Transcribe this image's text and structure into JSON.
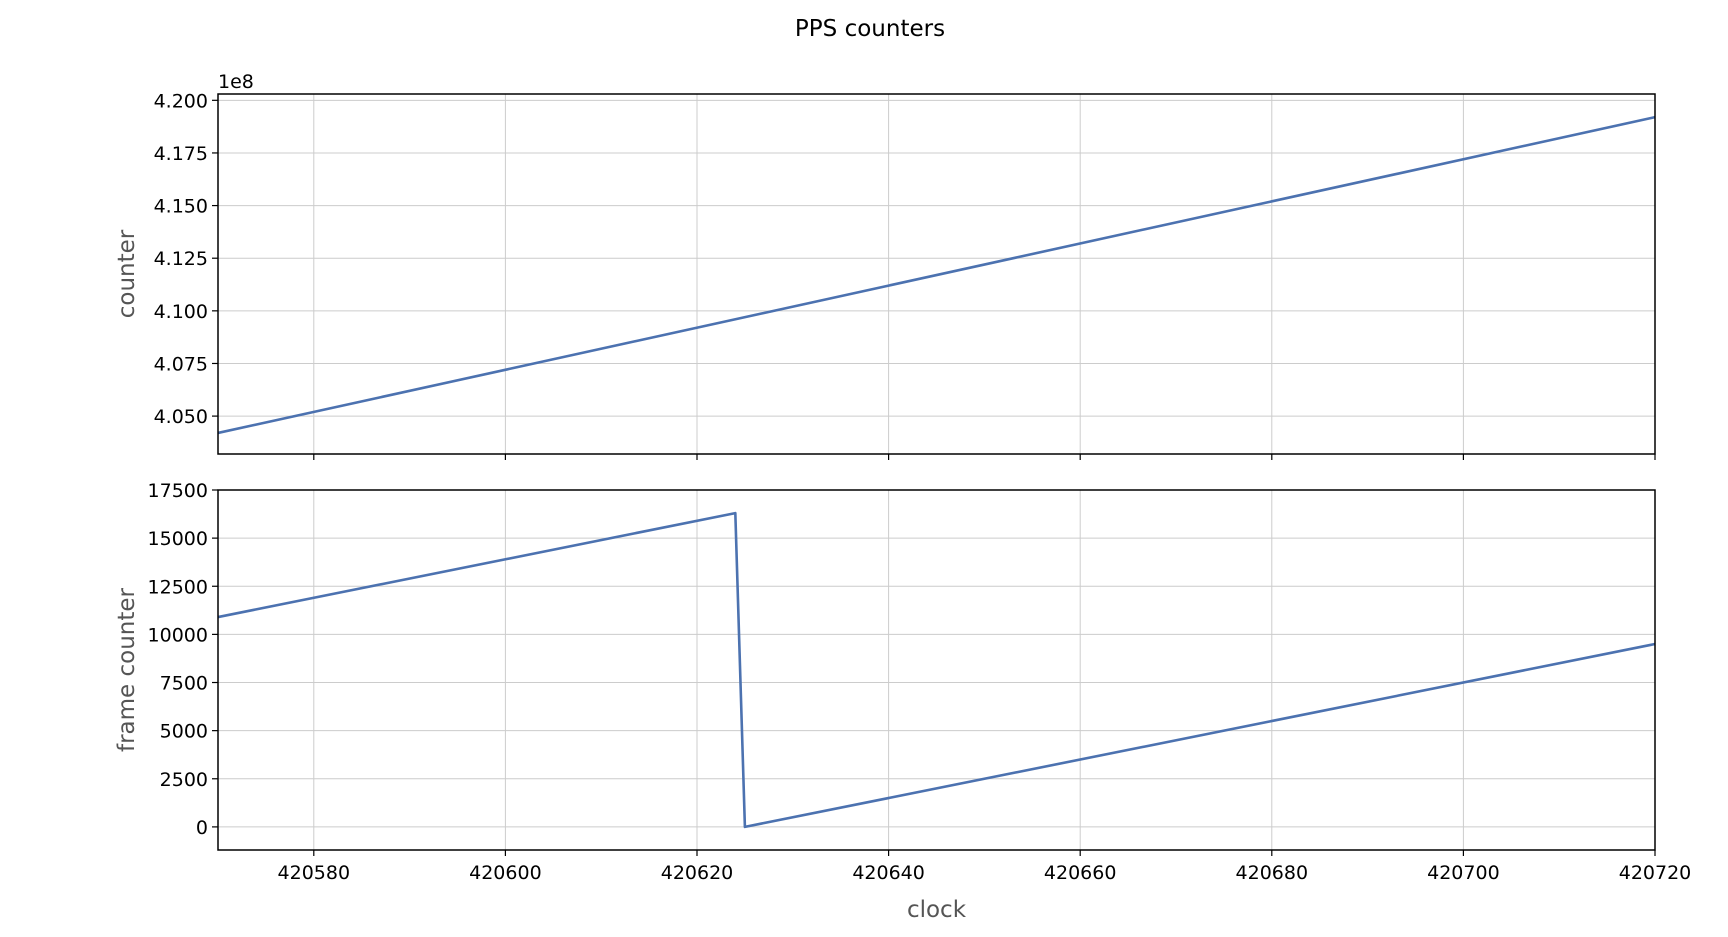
{
  "title": "PPS counters",
  "colors": {
    "series": "#4c72b0",
    "grid": "#cccccc"
  },
  "chart_data": [
    {
      "type": "line",
      "title": "",
      "xlabel": "",
      "ylabel": "counter",
      "y_offset_label": "1e8",
      "x_shared": true,
      "xlim": [
        420570,
        420720
      ],
      "ylim": [
        4.032,
        4.203
      ],
      "xticks": [
        420580,
        420600,
        420620,
        420640,
        420660,
        420680,
        420700,
        420720
      ],
      "xtick_labels_visible": false,
      "yticks": [
        4.05,
        4.075,
        4.1,
        4.125,
        4.15,
        4.175,
        4.2
      ],
      "ytick_labels": [
        "4.050",
        "4.075",
        "4.100",
        "4.125",
        "4.150",
        "4.175",
        "4.200"
      ],
      "grid": true,
      "series": [
        {
          "x": [
            420570,
            420720
          ],
          "y": [
            4.042,
            4.192
          ]
        }
      ]
    },
    {
      "type": "line",
      "title": "",
      "xlabel": "clock",
      "ylabel": "frame counter",
      "xlim": [
        420570,
        420720
      ],
      "ylim": [
        -1200,
        17500
      ],
      "xticks": [
        420580,
        420600,
        420620,
        420640,
        420660,
        420680,
        420700,
        420720
      ],
      "xtick_labels": [
        "420580",
        "420600",
        "420620",
        "420640",
        "420660",
        "420680",
        "420700",
        "420720"
      ],
      "yticks": [
        0,
        2500,
        5000,
        7500,
        10000,
        12500,
        15000,
        17500
      ],
      "ytick_labels": [
        "0",
        "2500",
        "5000",
        "7500",
        "10000",
        "12500",
        "15000",
        "17500"
      ],
      "grid": true,
      "series": [
        {
          "x": [
            420570,
            420624,
            420625,
            420720
          ],
          "y": [
            10900,
            16300,
            0,
            9500
          ]
        }
      ]
    }
  ]
}
